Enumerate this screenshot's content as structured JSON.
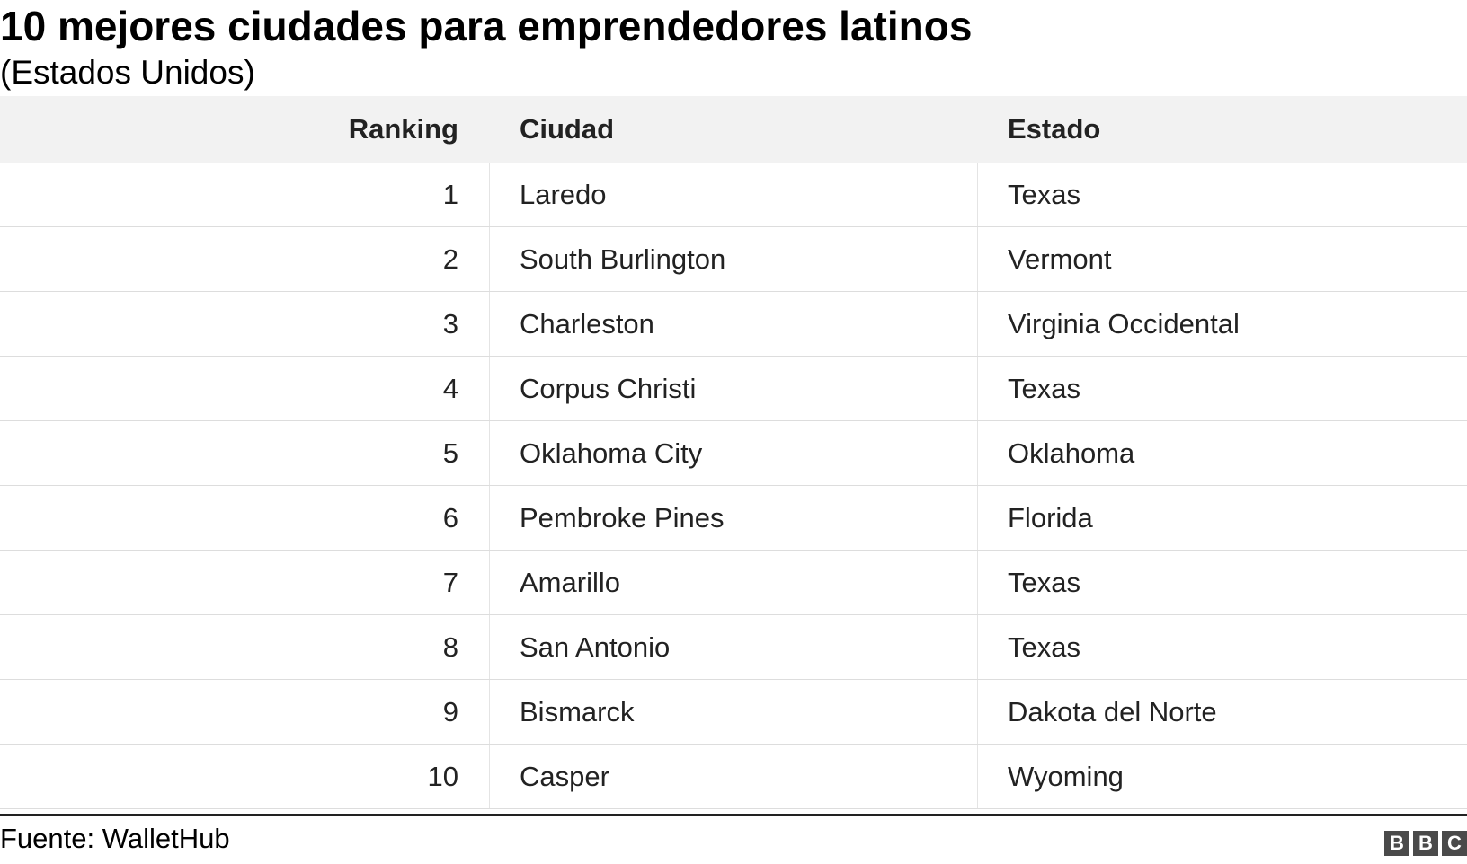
{
  "header": {
    "title": "10 mejores ciudades para emprendedores latinos",
    "subtitle": "(Estados Unidos)"
  },
  "table": {
    "columns": [
      "Ranking",
      "Ciudad",
      "Estado"
    ],
    "rows": [
      [
        1,
        "Laredo",
        "Texas"
      ],
      [
        2,
        "South Burlington",
        "Vermont"
      ],
      [
        3,
        "Charleston",
        "Virginia Occidental"
      ],
      [
        4,
        "Corpus Christi",
        "Texas"
      ],
      [
        5,
        "Oklahoma City",
        "Oklahoma"
      ],
      [
        6,
        "Pembroke Pines",
        "Florida"
      ],
      [
        7,
        "Amarillo",
        "Texas"
      ],
      [
        8,
        "San Antonio",
        "Texas"
      ],
      [
        9,
        "Bismarck",
        "Dakota del Norte"
      ],
      [
        10,
        "Casper",
        "Wyoming"
      ]
    ]
  },
  "footer": {
    "source": "Fuente: WalletHub",
    "logo": [
      "B",
      "B",
      "C"
    ]
  }
}
